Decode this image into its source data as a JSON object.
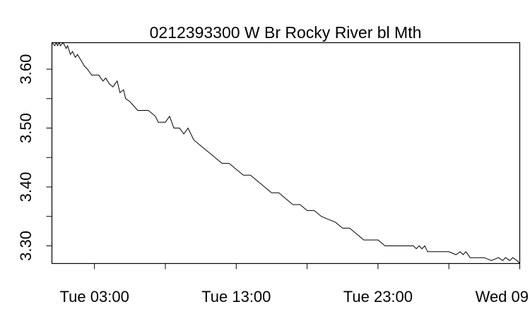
{
  "chart_data": {
    "type": "line",
    "title": "0212393300 W Br Rocky River bl Mth",
    "xlabel": "",
    "ylabel": "",
    "x_axis": {
      "unit": "hours since plot start",
      "range": [
        0,
        66
      ],
      "tick_positions": [
        6,
        16,
        26,
        36,
        46,
        56,
        66
      ],
      "labeled_ticks": [
        {
          "x": 6,
          "label": "Tue 03:00"
        },
        {
          "x": 26,
          "label": "Tue 13:00"
        },
        {
          "x": 46,
          "label": "Tue 23:00"
        },
        {
          "x": 66,
          "label": "Wed 09"
        }
      ]
    },
    "y_axis": {
      "range": [
        3.27,
        3.645
      ],
      "ticks": [
        3.3,
        3.35,
        3.4,
        3.45,
        3.5,
        3.55,
        3.6
      ],
      "labeled_ticks": [
        {
          "y": 3.3,
          "label": "3.30"
        },
        {
          "y": 3.4,
          "label": "3.40"
        },
        {
          "y": 3.5,
          "label": "3.50"
        },
        {
          "y": 3.6,
          "label": "3.60"
        }
      ]
    },
    "grid": false,
    "legend": "none",
    "line_color": "#000000",
    "series": [
      {
        "x": [
          0.0,
          0.4,
          0.6,
          0.8,
          1.0,
          1.2,
          1.6,
          2.0,
          2.2,
          2.6,
          2.9,
          3.3,
          3.6,
          4.1,
          4.6,
          5.0,
          5.6,
          6.0,
          6.6,
          7.2,
          7.6,
          8.1,
          8.6,
          9.2,
          9.6,
          10.1,
          10.4,
          11.0,
          12.1,
          13.0,
          13.6,
          14.6,
          15.0,
          16.0,
          16.6,
          17.2,
          18.0,
          18.6,
          19.2,
          20.0,
          21.0,
          22.0,
          23.0,
          24.0,
          25.0,
          26.0,
          27.0,
          28.0,
          29.0,
          30.0,
          31.0,
          32.0,
          33.0,
          34.0,
          35.0,
          36.0,
          37.0,
          38.0,
          39.0,
          40.0,
          41.0,
          42.0,
          43.0,
          44.0,
          45.0,
          46.0,
          47.0,
          48.0,
          49.0,
          50.0,
          51.0,
          51.4,
          51.8,
          52.2,
          52.6,
          53.0,
          54.0,
          55.0,
          56.0,
          57.0,
          57.6,
          58.0,
          58.4,
          59.0,
          60.0,
          61.0,
          62.0,
          63.0,
          63.6,
          64.0,
          64.6,
          65.0,
          65.6,
          66.0
        ],
        "y": [
          3.645,
          3.64,
          3.645,
          3.64,
          3.645,
          3.64,
          3.645,
          3.635,
          3.64,
          3.625,
          3.63,
          3.62,
          3.625,
          3.615,
          3.605,
          3.6,
          3.59,
          3.59,
          3.59,
          3.58,
          3.585,
          3.575,
          3.57,
          3.58,
          3.56,
          3.565,
          3.55,
          3.545,
          3.53,
          3.53,
          3.53,
          3.52,
          3.51,
          3.51,
          3.52,
          3.5,
          3.5,
          3.49,
          3.5,
          3.48,
          3.47,
          3.46,
          3.45,
          3.44,
          3.44,
          3.43,
          3.42,
          3.42,
          3.41,
          3.4,
          3.39,
          3.39,
          3.38,
          3.37,
          3.37,
          3.36,
          3.36,
          3.35,
          3.345,
          3.34,
          3.33,
          3.33,
          3.32,
          3.31,
          3.31,
          3.31,
          3.3,
          3.3,
          3.3,
          3.3,
          3.3,
          3.295,
          3.3,
          3.295,
          3.3,
          3.29,
          3.29,
          3.29,
          3.29,
          3.285,
          3.29,
          3.285,
          3.29,
          3.28,
          3.28,
          3.28,
          3.275,
          3.28,
          3.275,
          3.28,
          3.275,
          3.28,
          3.275,
          3.27
        ]
      }
    ]
  }
}
